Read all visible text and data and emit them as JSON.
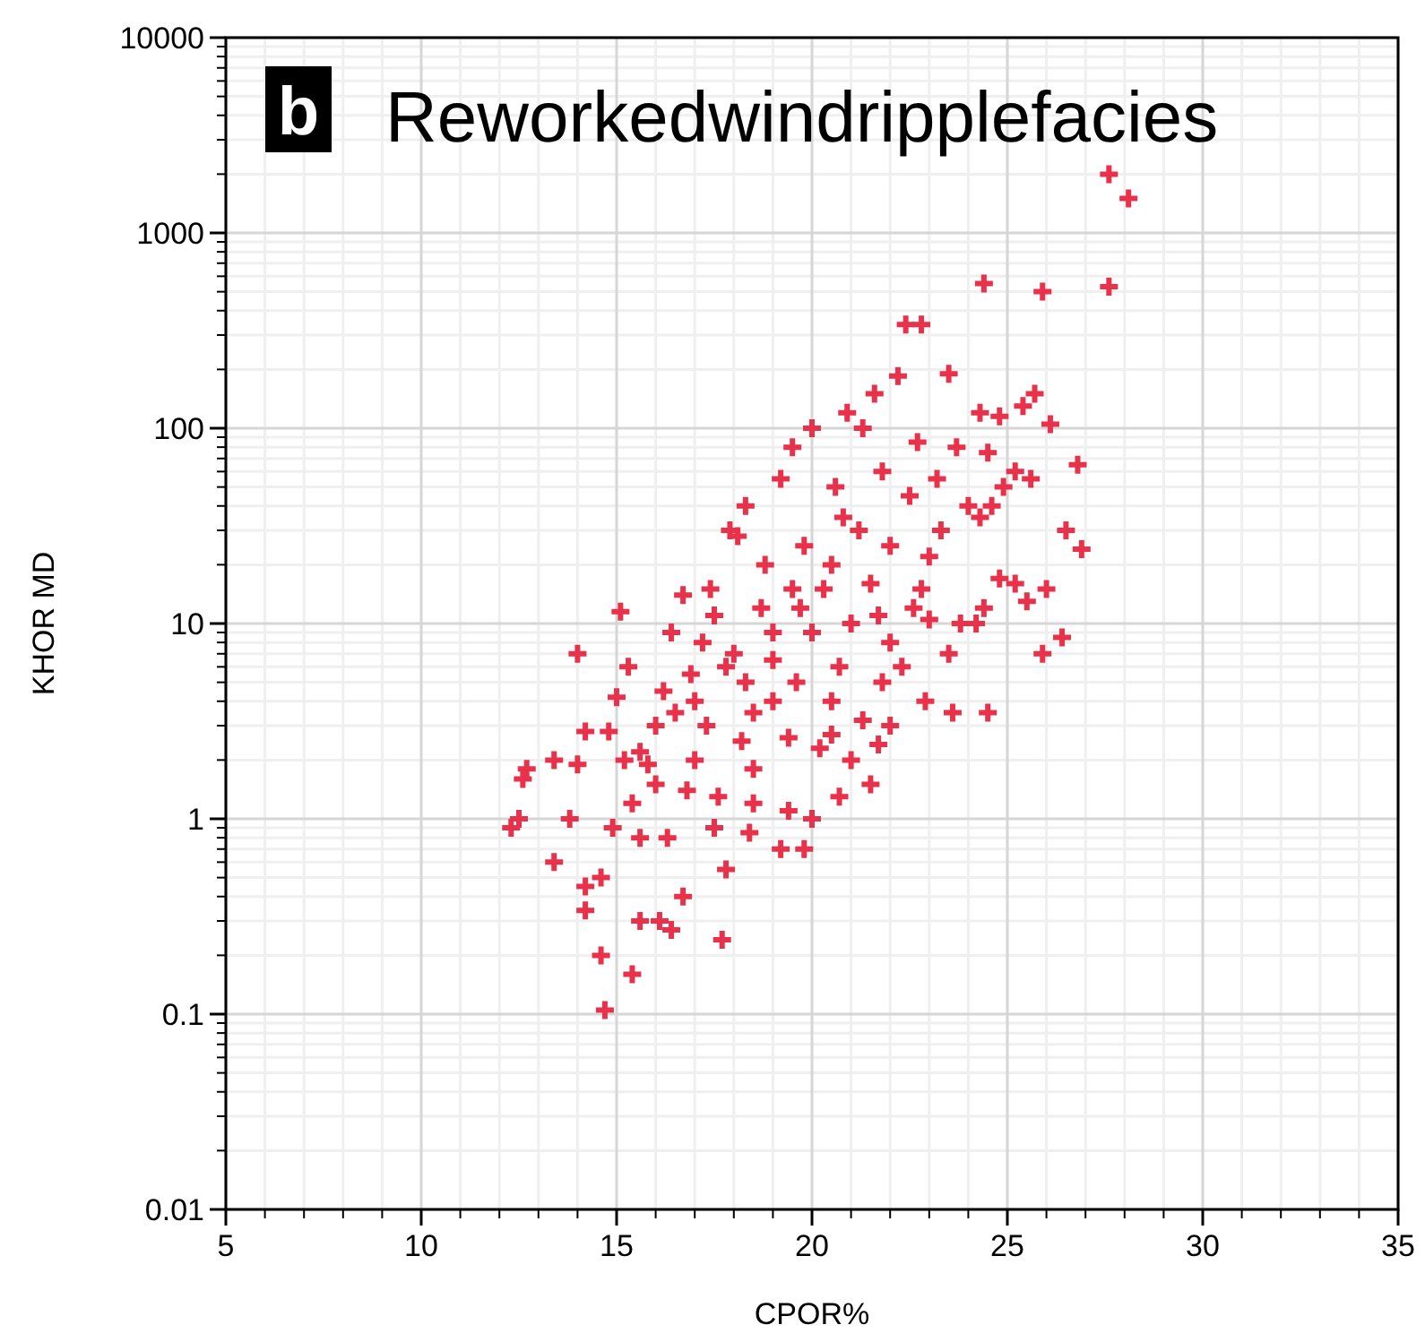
{
  "chart_data": {
    "type": "scatter",
    "title": "Reworkedwindripplefacies",
    "annotations": [
      "b"
    ],
    "xlabel": "CPOR%",
    "ylabel": "KHOR MD",
    "log": "y",
    "grid": true,
    "marker": "cross",
    "xlim": [
      5,
      35
    ],
    "xticks": [
      5,
      10,
      15,
      20,
      25,
      30,
      35
    ],
    "ylim": [
      0.01,
      10000
    ],
    "yticks": [
      0.01,
      0.1,
      1,
      10,
      100,
      1000,
      10000
    ],
    "series": [
      {
        "color": "#e8314a",
        "x": [
          27.6,
          28.1,
          24.4,
          25.9,
          27.6,
          22.4,
          22.8,
          23.5,
          22.2,
          21.6,
          25.7,
          25.4,
          24.3,
          24.8,
          26.1,
          20.9,
          21.3,
          20,
          22.7,
          23.7,
          24.5,
          19.5,
          26.8,
          25.2,
          25.6,
          24.9,
          23.2,
          21.8,
          20.6,
          22.5,
          19.2,
          18.3,
          24,
          24.3,
          26.5,
          26.9,
          17.9,
          18.1,
          19.8,
          21.2,
          22,
          23,
          20.5,
          18.8,
          17.4,
          16.7,
          19.5,
          21.5,
          22.8,
          25.2,
          25.5,
          26,
          24.4,
          23.8,
          21,
          20,
          18.7,
          17.5,
          15.1,
          16.4,
          17.2,
          18,
          19,
          22,
          23.5,
          25.9,
          26.4,
          24.2,
          14,
          15.3,
          16.9,
          18.3,
          19.6,
          20.7,
          21.8,
          22.9,
          24.5,
          23.6,
          16.2,
          17,
          15,
          14.8,
          14.2,
          13.4,
          14,
          12.7,
          12.6,
          12.5,
          12.3,
          13.8,
          15.2,
          15.6,
          16,
          17.3,
          18.2,
          19.4,
          20.2,
          21,
          22,
          21.5,
          20.7,
          20,
          19.4,
          18.5,
          17.6,
          16.8,
          16,
          15.4,
          14.9,
          15.6,
          16.3,
          17.5,
          18.4,
          19.2,
          19.8,
          17.8,
          16.7,
          14.2,
          14.2,
          13.4,
          14.6,
          15.6,
          16.1,
          16.4,
          17.7,
          14.6,
          15.4,
          14.7,
          18.5,
          19,
          20.5,
          21.3,
          22.3,
          23,
          24.8,
          22.6,
          21.7,
          20.3,
          23.3,
          24.6,
          20.8,
          19.7,
          17,
          18.5,
          20.5,
          21.7,
          19,
          17.8,
          16.5,
          15.8
        ],
        "values": [
          2000,
          1500,
          550,
          500,
          530,
          340,
          340,
          190,
          185,
          150,
          150,
          130,
          120,
          115,
          105,
          120,
          100,
          100,
          85,
          80,
          75,
          80,
          65,
          60,
          55,
          50,
          55,
          60,
          50,
          45,
          55,
          40,
          40,
          35,
          30,
          24,
          30,
          28,
          25,
          30,
          25,
          22,
          20,
          20,
          15,
          14,
          15,
          16,
          15,
          16,
          13,
          15,
          12,
          10,
          10,
          9,
          12,
          11,
          11.5,
          9,
          8,
          7,
          6.5,
          8,
          7,
          7,
          8.5,
          10,
          7,
          6,
          5.5,
          5,
          5,
          6,
          5,
          4,
          3.5,
          3.5,
          4.5,
          4,
          4.2,
          2.8,
          2.8,
          2,
          1.9,
          1.8,
          1.6,
          1,
          0.9,
          1,
          2,
          2.2,
          3,
          3,
          2.5,
          2.6,
          2.3,
          2,
          3,
          1.5,
          1.3,
          1,
          1.1,
          1.2,
          1.3,
          1.4,
          1.5,
          1.2,
          0.9,
          0.8,
          0.8,
          0.9,
          0.85,
          0.7,
          0.7,
          0.55,
          0.4,
          0.45,
          0.34,
          0.6,
          0.5,
          0.3,
          0.3,
          0.27,
          0.24,
          0.2,
          0.16,
          0.105,
          3.5,
          4,
          4,
          3.2,
          6,
          10.5,
          17,
          12,
          11,
          15,
          30,
          40,
          35,
          12,
          2,
          1.8,
          2.7,
          2.4,
          9,
          6,
          3.5,
          1.9
        ]
      }
    ]
  }
}
